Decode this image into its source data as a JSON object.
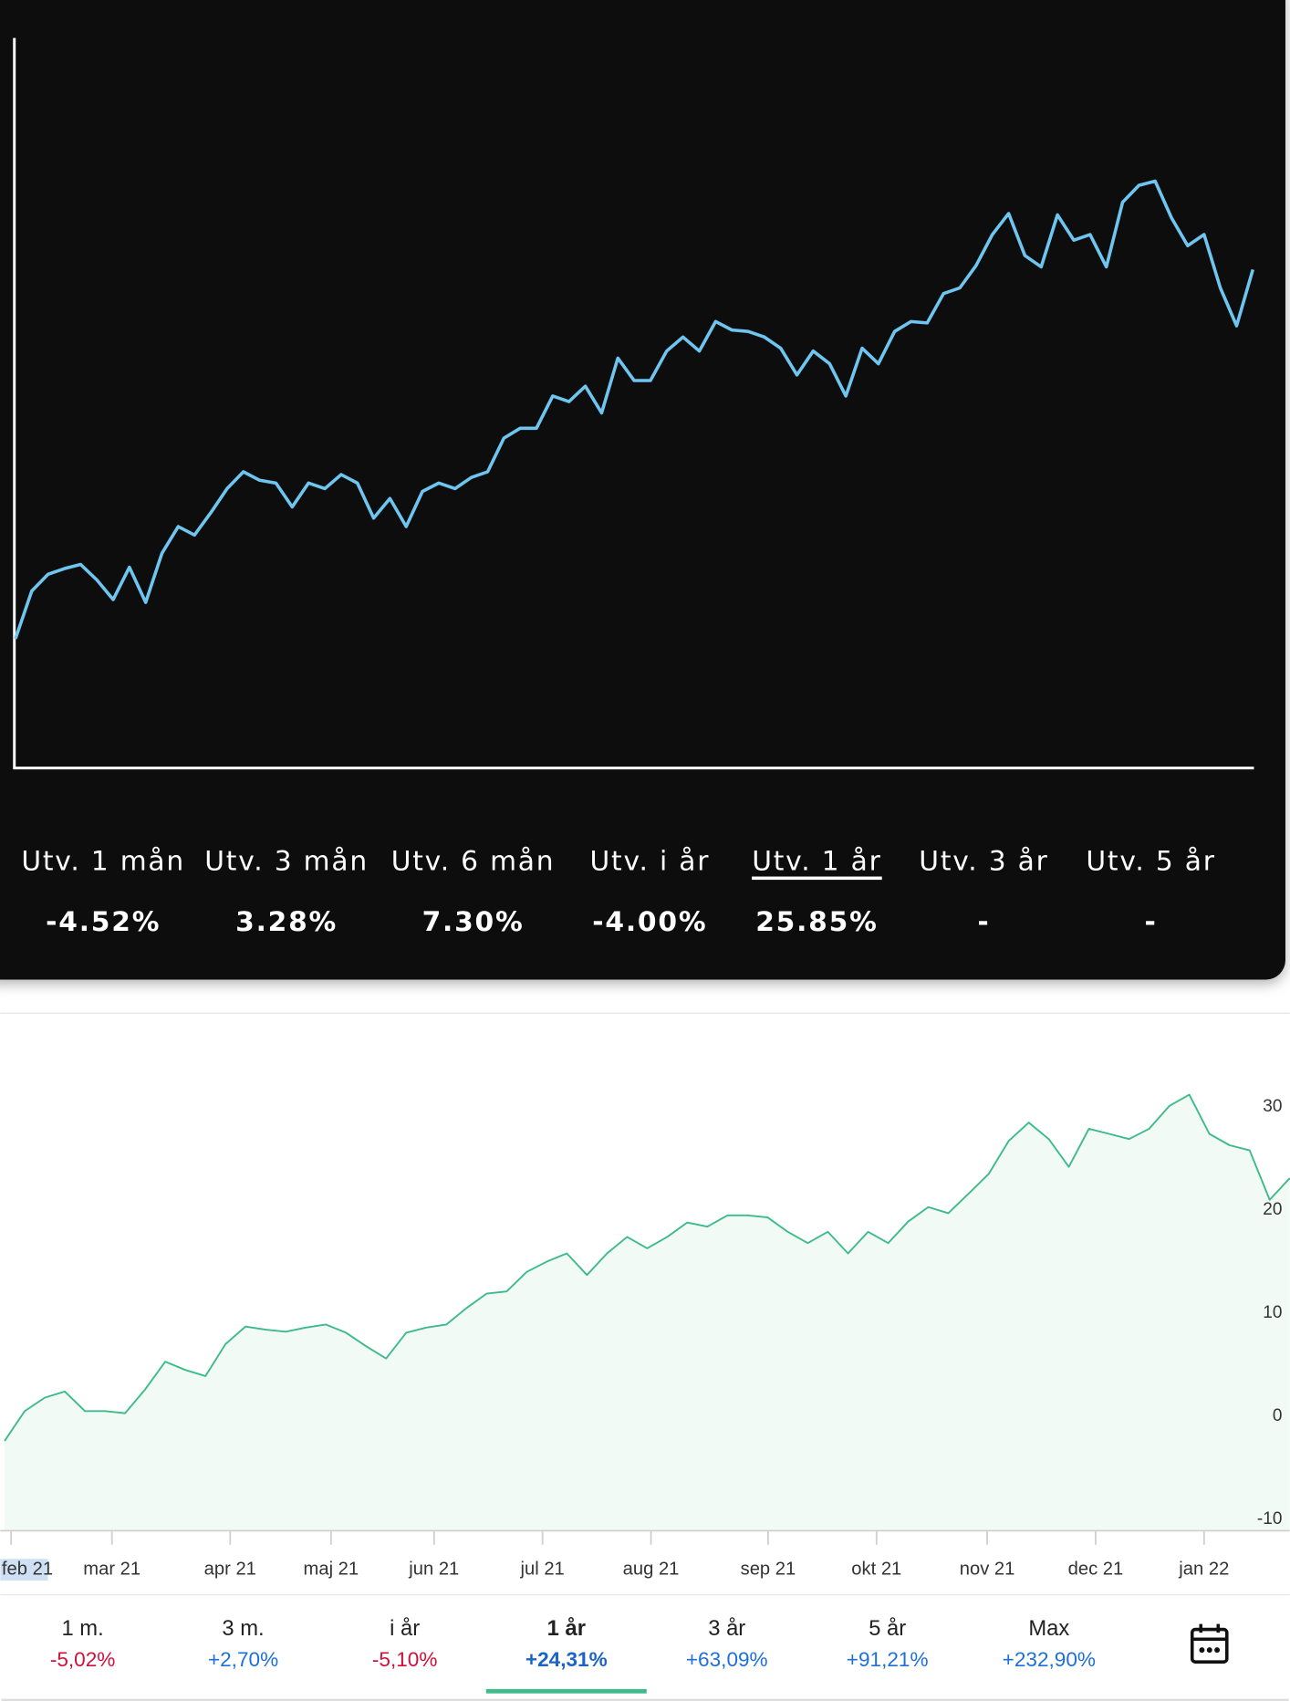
{
  "chart_data": [
    {
      "type": "line",
      "color": "#6ec6f0",
      "ylim": [
        -8,
        44
      ],
      "values": [
        1.2,
        4.6,
        5.8,
        6.2,
        6.5,
        5.4,
        4,
        6.3,
        3.8,
        7.3,
        9.2,
        8.6,
        10.2,
        11.9,
        13.1,
        12.5,
        12.3,
        10.6,
        12.3,
        11.9,
        12.9,
        12.3,
        9.8,
        11.2,
        9.2,
        11.7,
        12.3,
        11.9,
        12.7,
        13.1,
        15.5,
        16.2,
        16.2,
        18.5,
        18.1,
        19.2,
        17.3,
        21.2,
        19.6,
        19.6,
        21.7,
        22.7,
        21.7,
        23.8,
        23.2,
        23.1,
        22.7,
        21.9,
        20,
        21.7,
        20.8,
        18.5,
        21.9,
        20.8,
        23.1,
        23.8,
        23.7,
        25.8,
        26.2,
        27.8,
        30,
        31.5,
        28.5,
        27.7,
        31.4,
        29.6,
        30,
        27.7,
        32.3,
        33.5,
        33.8,
        31.2,
        29.2,
        30,
        26.2,
        23.5,
        27.5
      ]
    },
    {
      "type": "line",
      "color": "#3dbb8a",
      "ylim": [
        -11,
        39
      ],
      "yticks": [
        30,
        20,
        10,
        0,
        -10
      ],
      "xtick_labels": [
        "feb 21",
        "mar 21",
        "apr 21",
        "maj 21",
        "jun 21",
        "jul 21",
        "aug 21",
        "sep 21",
        "okt 21",
        "nov 21",
        "dec 21",
        "jan 22"
      ],
      "values": [
        -2.4,
        0.5,
        1.8,
        2.4,
        0.5,
        0.5,
        0.3,
        2.6,
        5.3,
        4.5,
        3.9,
        7,
        8.7,
        8.4,
        8.2,
        8.6,
        8.9,
        8.1,
        6.8,
        5.6,
        8.1,
        8.6,
        8.9,
        10.5,
        11.9,
        12.1,
        14,
        15,
        15.8,
        13.7,
        15.8,
        17.4,
        16.3,
        17.4,
        18.8,
        18.4,
        19.5,
        19.5,
        19.3,
        17.9,
        16.8,
        17.9,
        15.8,
        17.9,
        16.8,
        18.9,
        20.3,
        19.7,
        21.6,
        23.5,
        26.7,
        28.5,
        26.9,
        24.2,
        27.9,
        27.4,
        26.9,
        27.9,
        30.1,
        31.2,
        27.4,
        26.3,
        25.8,
        21,
        23.1
      ]
    }
  ],
  "stats": [
    {
      "label": "Utv. 1 mån",
      "value": "-4.52%"
    },
    {
      "label": "Utv. 3 mån",
      "value": "3.28%"
    },
    {
      "label": "Utv. 6 mån",
      "value": "7.30%"
    },
    {
      "label": "Utv. i år",
      "value": "-4.00%"
    },
    {
      "label": "Utv. 1 år",
      "value": "25.85%"
    },
    {
      "label": "Utv. 3 år",
      "value": "-"
    },
    {
      "label": "Utv. 5 år",
      "value": "-"
    }
  ],
  "stats_selected": 4,
  "periods": [
    {
      "label": "1 m.",
      "change": "-5,02%"
    },
    {
      "label": "3 m.",
      "change": "+2,70%"
    },
    {
      "label": "i år",
      "change": "-5,10%"
    },
    {
      "label": "1 år",
      "change": "+24,31%"
    },
    {
      "label": "3 år",
      "change": "+63,09%"
    },
    {
      "label": "5 år",
      "change": "+91,21%"
    },
    {
      "label": "Max",
      "change": "+232,90%"
    }
  ],
  "periods_selected": 3
}
